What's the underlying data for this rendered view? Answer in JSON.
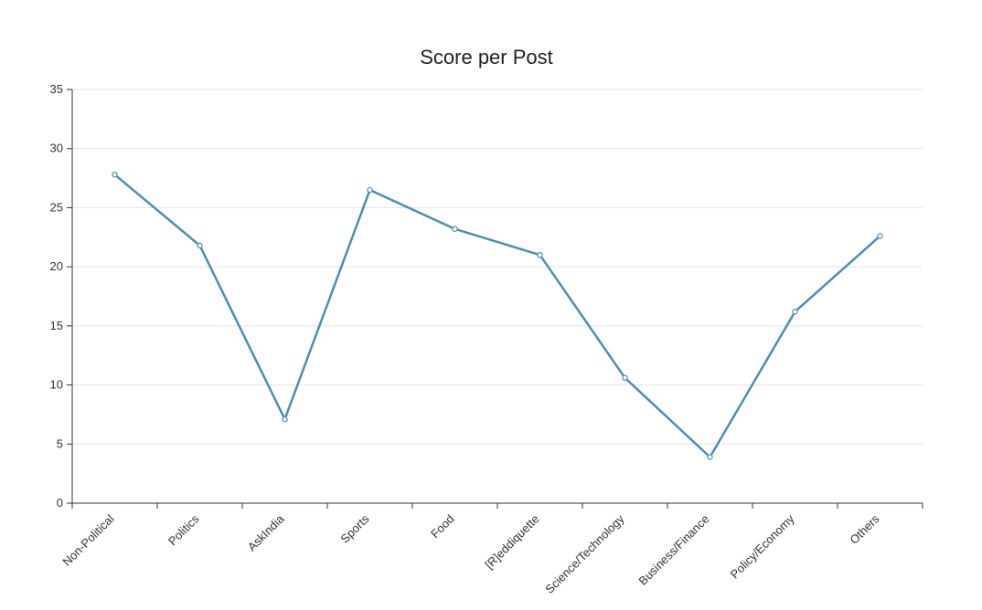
{
  "chart_data": {
    "type": "line",
    "title": "Score per Post",
    "xlabel": "",
    "ylabel": "",
    "categories": [
      "Non-Political",
      "Politics",
      "AskIndia",
      "Sports",
      "Food",
      "[R]eddiquette",
      "Science/Technology",
      "Business/Finance",
      "Policy/Economy",
      "Others"
    ],
    "series": [
      {
        "values": [
          27.8,
          21.8,
          7.1,
          26.5,
          23.2,
          21.0,
          10.6,
          3.9,
          16.2,
          22.6
        ]
      }
    ],
    "ylim": [
      0,
      35
    ],
    "yticks": [
      0,
      5,
      10,
      15,
      20,
      25,
      30,
      35
    ],
    "grid": true,
    "legend": "none",
    "colors": {
      "line": "#4a90b0",
      "grid": "#e3e3e3",
      "axis": "#333333"
    }
  }
}
